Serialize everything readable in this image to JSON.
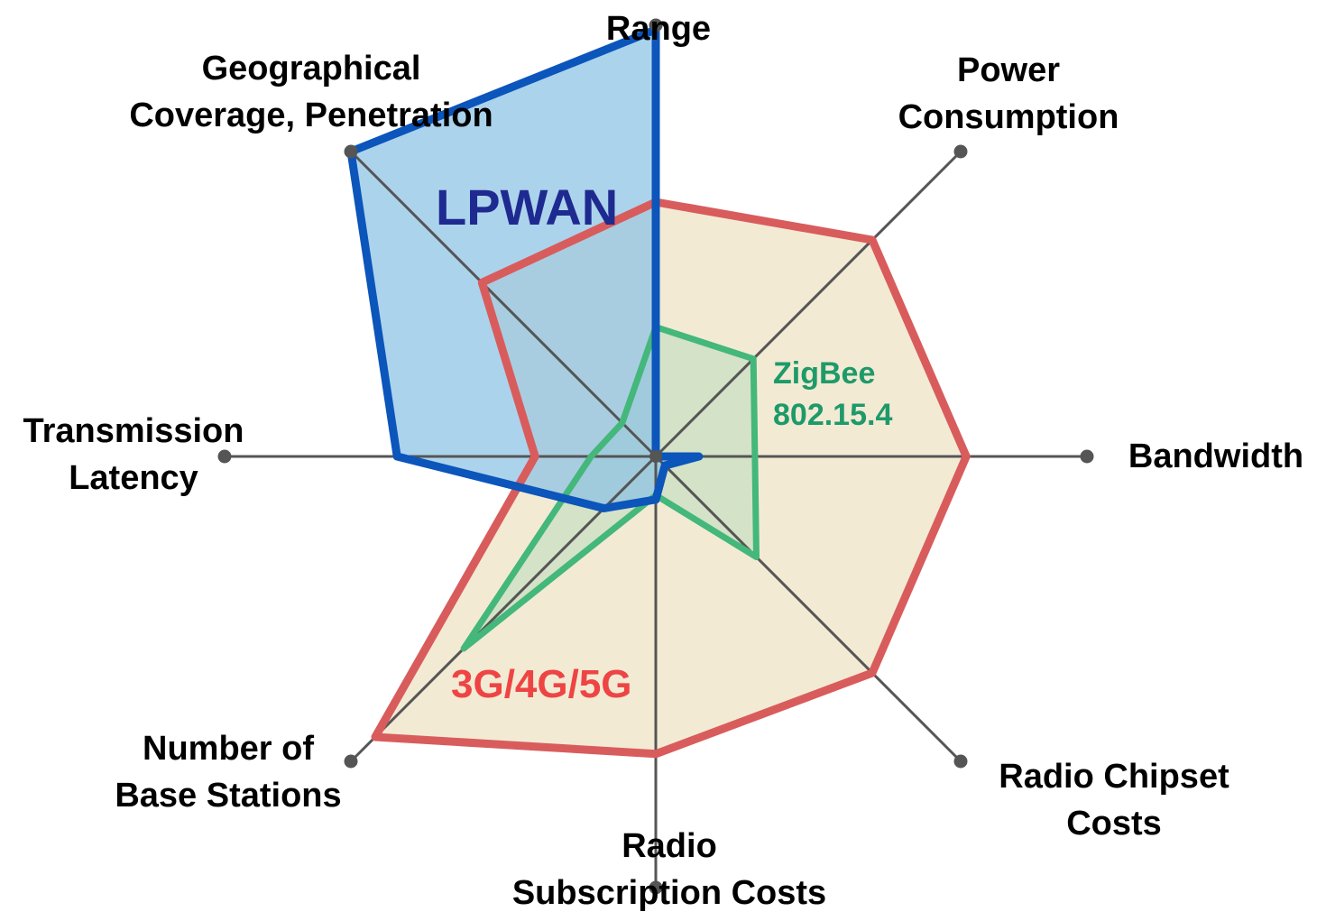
{
  "chart_data": {
    "type": "radar",
    "axes": [
      {
        "label_lines": [
          "Range"
        ]
      },
      {
        "label_lines": [
          "Power",
          "Consumption"
        ]
      },
      {
        "label_lines": [
          "Bandwidth"
        ]
      },
      {
        "label_lines": [
          "Radio Chipset",
          "Costs"
        ]
      },
      {
        "label_lines": [
          "Radio",
          "Subscription Costs"
        ]
      },
      {
        "label_lines": [
          "Number of",
          "Base Stations"
        ]
      },
      {
        "label_lines": [
          "Transmission",
          "Latency"
        ]
      },
      {
        "label_lines": [
          "Geographical",
          "Coverage, Penetration"
        ]
      }
    ],
    "range": [
      0,
      1
    ],
    "grid": false,
    "series": [
      {
        "name": "3G/4G/5G",
        "values": [
          0.59,
          0.71,
          0.72,
          0.71,
          0.69,
          0.92,
          0.28,
          0.57
        ],
        "color": "#d95c5c",
        "fill": "#f3ead4",
        "label_color": "#ee4444"
      },
      {
        "name": "ZigBee\n802.15.4",
        "values": [
          0.3,
          0.32,
          0.23,
          0.33,
          0.09,
          0.63,
          0.15,
          0.11
        ],
        "color": "#44b77b",
        "fill": "#c8dfc2",
        "label_color": "#1e9a6a"
      },
      {
        "name": "LPWAN",
        "values": [
          0.99,
          0.0,
          0.1,
          0.03,
          0.1,
          0.17,
          0.6,
          1.0
        ],
        "color": "#0b55bb",
        "fill": "#8cc2e4",
        "label_color": "#1e2a90"
      }
    ]
  }
}
